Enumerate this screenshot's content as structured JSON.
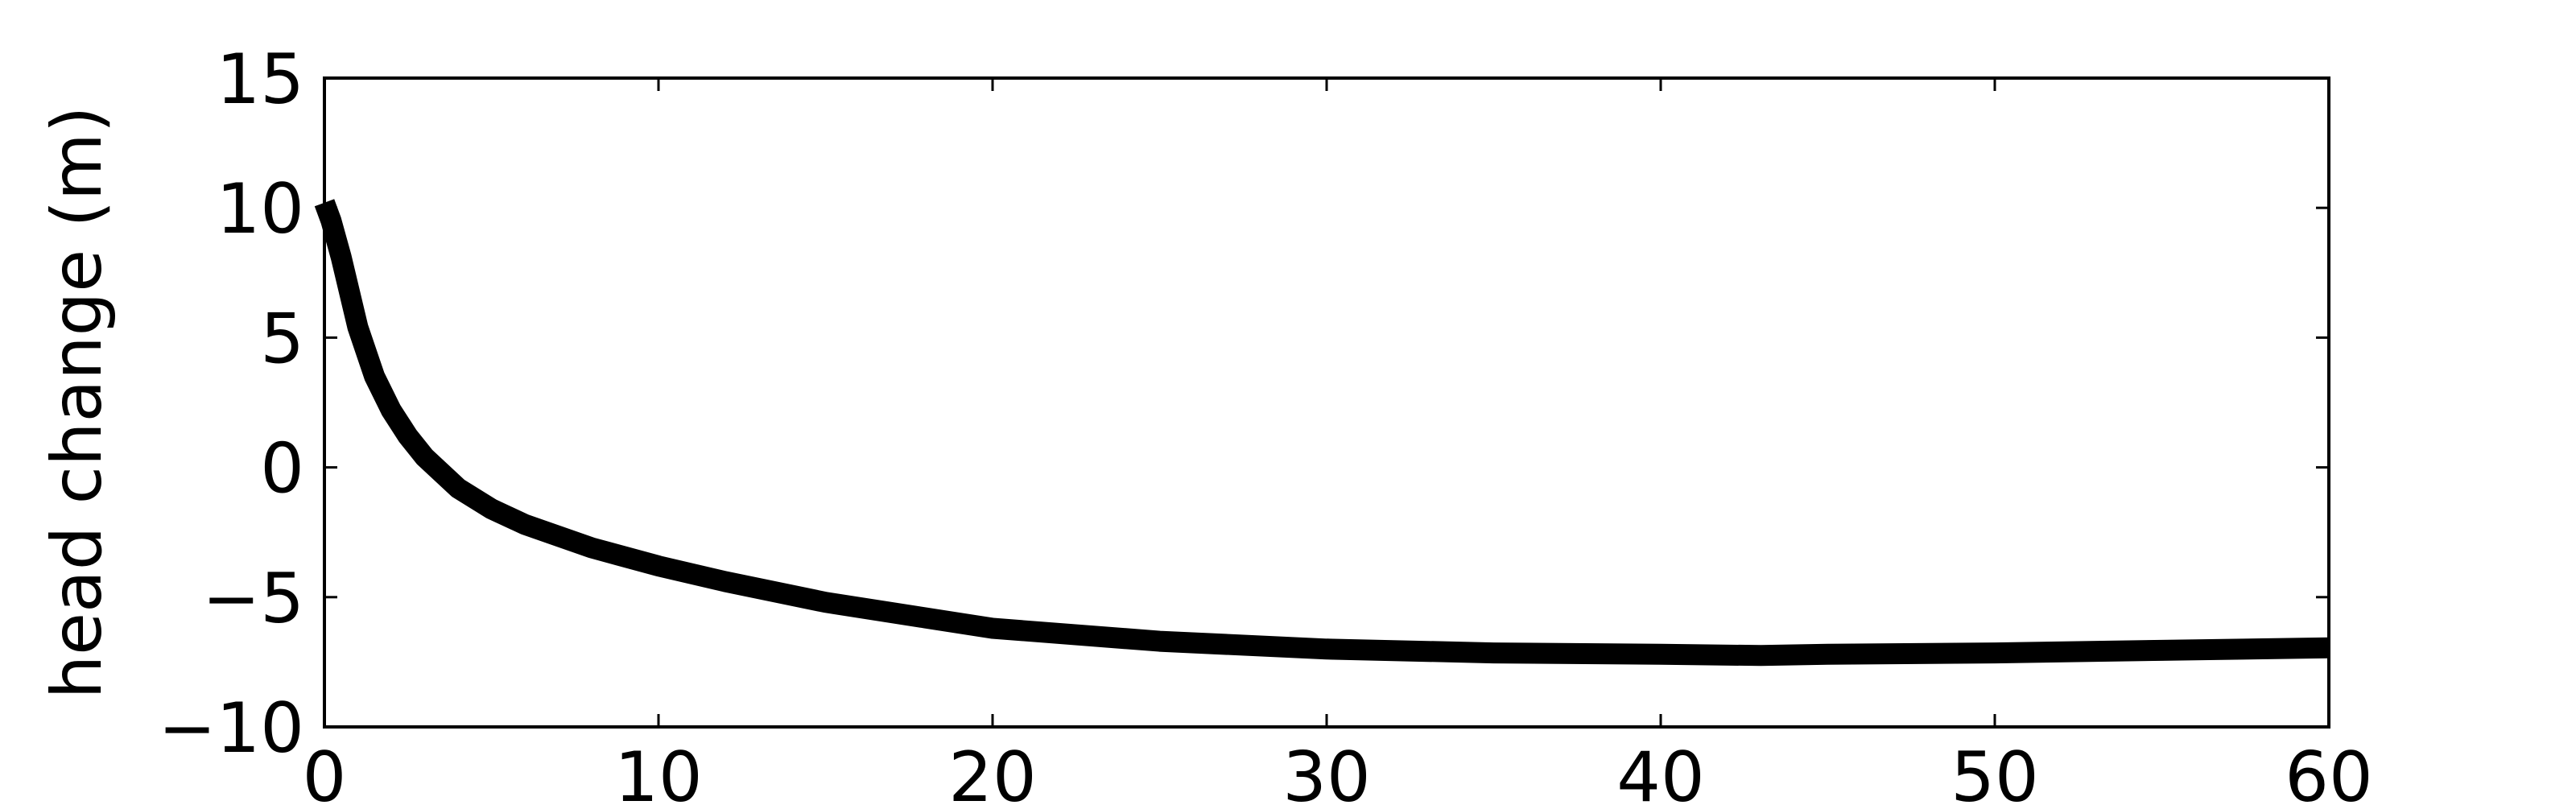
{
  "chart_data": {
    "type": "line",
    "title": "",
    "xlabel": "",
    "ylabel": "head change (m)",
    "xlim": [
      0,
      60
    ],
    "ylim": [
      -10,
      15
    ],
    "xticks": [
      "0",
      "10",
      "20",
      "30",
      "40",
      "50",
      "60"
    ],
    "yticks": [
      "15",
      "10",
      "5",
      "0",
      "−5",
      "−10"
    ],
    "grid": false,
    "legend": "none",
    "line_color": "#000000",
    "series": [
      {
        "x": [
          0,
          0.2,
          0.5,
          1,
          1.5,
          2,
          2.5,
          3,
          4,
          5,
          6,
          8,
          10,
          12,
          15,
          18,
          20,
          25,
          30,
          35,
          40,
          43,
          45,
          50,
          55,
          60
        ],
        "y": [
          10.2,
          9.5,
          8.1,
          5.4,
          3.5,
          2.2,
          1.2,
          0.4,
          -0.8,
          -1.6,
          -2.2,
          -3.1,
          -3.8,
          -4.4,
          -5.2,
          -5.8,
          -6.2,
          -6.7,
          -7.0,
          -7.15,
          -7.2,
          -7.25,
          -7.2,
          -7.15,
          -7.05,
          -6.95
        ]
      }
    ]
  }
}
